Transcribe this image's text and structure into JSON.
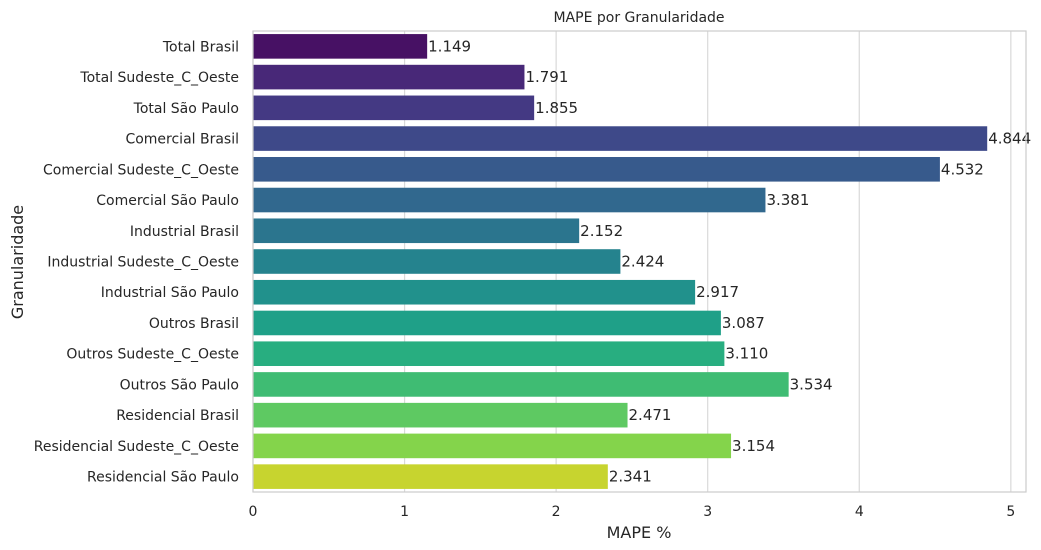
{
  "chart_data": {
    "type": "bar",
    "orientation": "horizontal",
    "title": "MAPE por Granularidade",
    "xlabel": "MAPE %",
    "ylabel": "Granularidade",
    "xlim": [
      0,
      5.1
    ],
    "xticks": [
      0,
      1,
      2,
      3,
      4,
      5
    ],
    "grid": "vertical",
    "categories": [
      "Total Brasil",
      "Total Sudeste_C_Oeste",
      "Total São Paulo",
      "Comercial Brasil",
      "Comercial Sudeste_C_Oeste",
      "Comercial São Paulo",
      "Industrial Brasil",
      "Industrial Sudeste_C_Oeste",
      "Industrial São Paulo",
      "Outros Brasil",
      "Outros Sudeste_C_Oeste",
      "Outros São Paulo",
      "Residencial Brasil",
      "Residencial Sudeste_C_Oeste",
      "Residencial São Paulo"
    ],
    "values": [
      1.149,
      1.791,
      1.855,
      4.844,
      4.532,
      3.381,
      2.152,
      2.424,
      2.917,
      3.087,
      3.11,
      3.534,
      2.471,
      3.154,
      2.341
    ],
    "value_labels": [
      "1.149",
      "1.791",
      "1.855",
      "4.844",
      "4.532",
      "3.381",
      "2.152",
      "2.424",
      "2.917",
      "3.087",
      "3.110",
      "3.534",
      "2.471",
      "3.154",
      "2.341"
    ],
    "colors": [
      "#471164",
      "#482878",
      "#443983",
      "#3e4989",
      "#375a8c",
      "#31688e",
      "#2b758e",
      "#25838e",
      "#21918c",
      "#1fa088",
      "#28ae80",
      "#3fbc73",
      "#5ec962",
      "#84d44b",
      "#addc30"
    ],
    "last_color": "#c7d42f"
  }
}
